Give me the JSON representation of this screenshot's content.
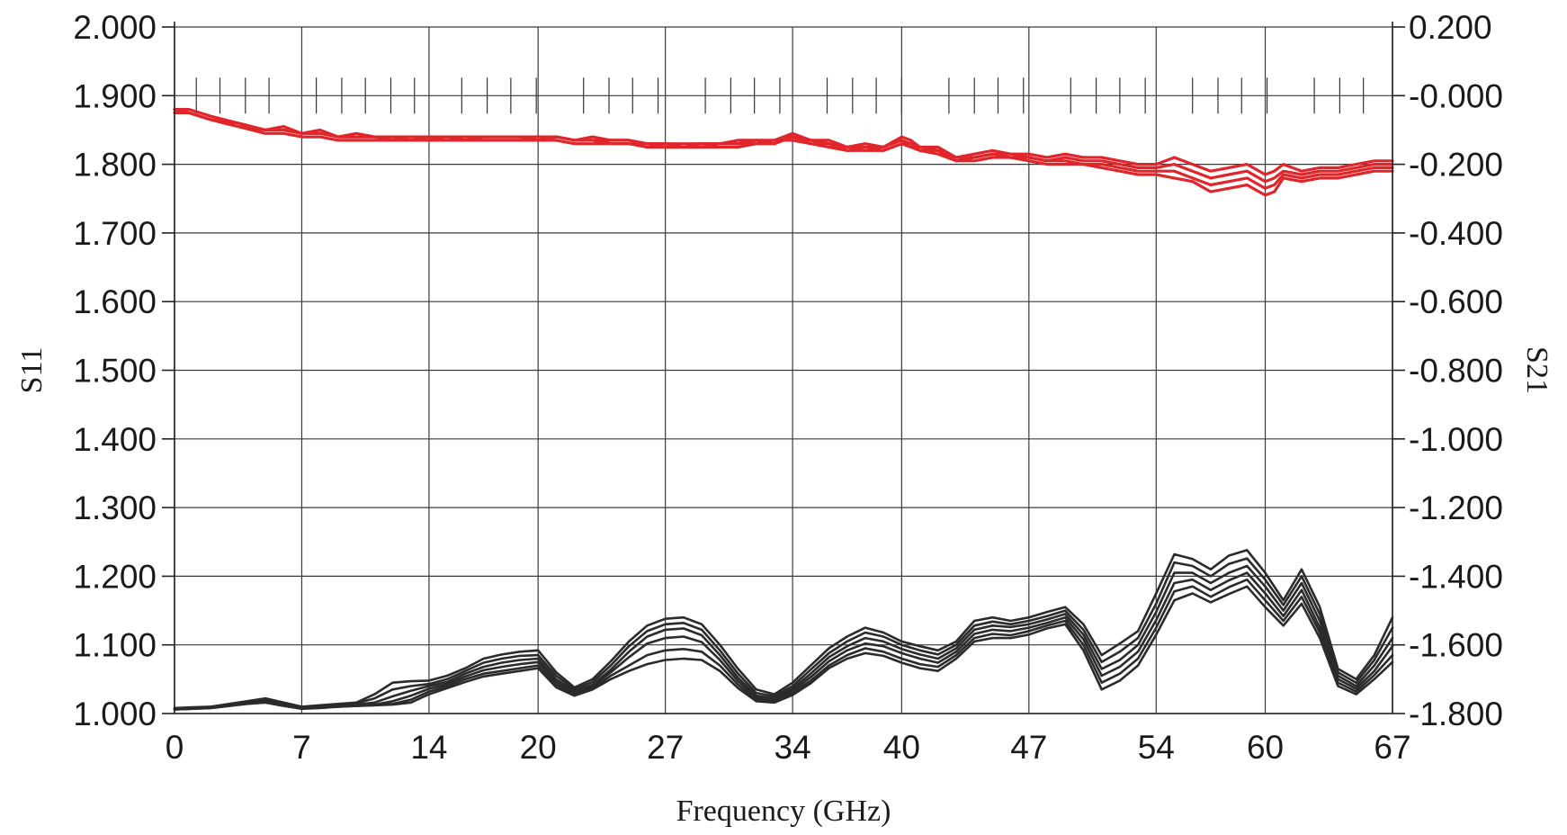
{
  "chart_data": {
    "type": "line",
    "title": "",
    "xlabel": "Frequency (GHz)",
    "ylabel_left": "S11",
    "ylabel_right": "S21",
    "x_ticks": [
      0,
      7,
      14,
      20,
      27,
      34,
      40,
      47,
      54,
      60,
      67
    ],
    "x_tick_labels": [
      "0",
      "7",
      "14",
      "20",
      "27",
      "34",
      "40",
      "47",
      "54",
      "60",
      "67"
    ],
    "xlim": [
      0,
      67
    ],
    "y_left_ticks": [
      1.0,
      1.1,
      1.2,
      1.3,
      1.4,
      1.5,
      1.6,
      1.7,
      1.8,
      1.9,
      2.0
    ],
    "y_left_tick_labels": [
      "1.000",
      "1.100",
      "1.200",
      "1.300",
      "1.400",
      "1.500",
      "1.600",
      "1.700",
      "1.800",
      "1.900",
      "2.000"
    ],
    "ylim_left": [
      1.0,
      2.0
    ],
    "y_right_ticks": [
      -1.8,
      -1.6,
      -1.4,
      -1.2,
      -1.0,
      -0.8,
      -0.6,
      -0.4,
      -0.2,
      0.0,
      0.2
    ],
    "y_right_tick_labels": [
      "-1.800",
      "-1.600",
      "-1.400",
      "-1.200",
      "-1.000",
      "-0.800",
      "-0.600",
      "-0.400",
      "-0.200",
      "-0.000",
      "0.200"
    ],
    "ylim_right": [
      -1.8,
      0.2
    ],
    "grid": true,
    "legend": "none",
    "colors": {
      "s21": "#e0262b",
      "s11": "#2b2b2b"
    },
    "marker_x": [
      1.2,
      2.5,
      3.9,
      5.2,
      7.8,
      9.2,
      10.5,
      11.9,
      13.2,
      15.8,
      17.2,
      18.5,
      19.9,
      22.5,
      23.9,
      25.2,
      26.6,
      29.2,
      30.6,
      31.9,
      33.3,
      35.9,
      37.3,
      38.6,
      40,
      42.6,
      44,
      45.3,
      46.7,
      49.3,
      50.7,
      52,
      53.4,
      56,
      57.4,
      58.7,
      60.1,
      62.7,
      64.1,
      65.4
    ],
    "s21": {
      "axis": "right",
      "x": [
        0,
        0.8,
        2,
        3.5,
        5,
        6,
        7,
        8,
        9,
        10,
        11,
        12,
        13,
        14,
        15,
        16,
        17,
        18,
        19,
        20,
        21,
        22,
        23,
        24,
        25,
        26,
        27,
        28,
        29,
        30,
        31,
        32,
        33,
        33.5,
        34,
        35,
        36,
        37,
        38,
        39,
        40,
        40.5,
        41,
        42,
        43,
        44,
        45,
        46,
        47,
        48,
        49,
        50,
        51,
        52,
        53,
        54,
        55,
        56,
        57,
        58,
        59,
        60,
        60.5,
        61,
        62,
        63,
        64,
        65,
        66,
        67
      ],
      "series": [
        {
          "values": [
            -0.04,
            -0.04,
            -0.06,
            -0.08,
            -0.1,
            -0.09,
            -0.11,
            -0.1,
            -0.12,
            -0.11,
            -0.12,
            -0.12,
            -0.12,
            -0.12,
            -0.12,
            -0.12,
            -0.12,
            -0.12,
            -0.12,
            -0.12,
            -0.12,
            -0.13,
            -0.12,
            -0.13,
            -0.13,
            -0.14,
            -0.14,
            -0.14,
            -0.14,
            -0.14,
            -0.13,
            -0.13,
            -0.13,
            -0.12,
            -0.11,
            -0.13,
            -0.13,
            -0.15,
            -0.14,
            -0.15,
            -0.12,
            -0.13,
            -0.15,
            -0.15,
            -0.18,
            -0.17,
            -0.16,
            -0.17,
            -0.17,
            -0.18,
            -0.17,
            -0.18,
            -0.18,
            -0.19,
            -0.2,
            -0.2,
            -0.18,
            -0.2,
            -0.22,
            -0.21,
            -0.2,
            -0.23,
            -0.22,
            -0.2,
            -0.22,
            -0.21,
            -0.21,
            -0.2,
            -0.19,
            -0.19
          ]
        },
        {
          "values": [
            -0.04,
            -0.05,
            -0.07,
            -0.08,
            -0.1,
            -0.1,
            -0.11,
            -0.11,
            -0.12,
            -0.12,
            -0.12,
            -0.12,
            -0.13,
            -0.12,
            -0.12,
            -0.13,
            -0.12,
            -0.12,
            -0.12,
            -0.13,
            -0.12,
            -0.13,
            -0.13,
            -0.13,
            -0.13,
            -0.14,
            -0.14,
            -0.15,
            -0.14,
            -0.14,
            -0.14,
            -0.13,
            -0.14,
            -0.12,
            -0.12,
            -0.13,
            -0.14,
            -0.15,
            -0.15,
            -0.15,
            -0.13,
            -0.14,
            -0.15,
            -0.16,
            -0.18,
            -0.18,
            -0.17,
            -0.17,
            -0.18,
            -0.19,
            -0.18,
            -0.19,
            -0.19,
            -0.2,
            -0.21,
            -0.21,
            -0.2,
            -0.22,
            -0.24,
            -0.23,
            -0.22,
            -0.25,
            -0.24,
            -0.22,
            -0.23,
            -0.22,
            -0.22,
            -0.21,
            -0.2,
            -0.2
          ]
        },
        {
          "values": [
            -0.04,
            -0.05,
            -0.07,
            -0.09,
            -0.1,
            -0.1,
            -0.11,
            -0.11,
            -0.12,
            -0.12,
            -0.12,
            -0.13,
            -0.13,
            -0.13,
            -0.12,
            -0.13,
            -0.13,
            -0.13,
            -0.13,
            -0.13,
            -0.12,
            -0.13,
            -0.13,
            -0.14,
            -0.14,
            -0.14,
            -0.15,
            -0.15,
            -0.15,
            -0.14,
            -0.14,
            -0.14,
            -0.14,
            -0.13,
            -0.12,
            -0.14,
            -0.14,
            -0.16,
            -0.15,
            -0.16,
            -0.14,
            -0.14,
            -0.16,
            -0.16,
            -0.19,
            -0.18,
            -0.17,
            -0.18,
            -0.18,
            -0.19,
            -0.19,
            -0.2,
            -0.2,
            -0.21,
            -0.22,
            -0.22,
            -0.22,
            -0.24,
            -0.26,
            -0.25,
            -0.24,
            -0.27,
            -0.26,
            -0.23,
            -0.24,
            -0.23,
            -0.23,
            -0.22,
            -0.21,
            -0.21
          ]
        },
        {
          "values": [
            -0.05,
            -0.05,
            -0.07,
            -0.09,
            -0.11,
            -0.11,
            -0.12,
            -0.12,
            -0.13,
            -0.13,
            -0.13,
            -0.13,
            -0.13,
            -0.13,
            -0.13,
            -0.13,
            -0.13,
            -0.13,
            -0.13,
            -0.13,
            -0.13,
            -0.14,
            -0.14,
            -0.14,
            -0.14,
            -0.15,
            -0.15,
            -0.15,
            -0.15,
            -0.15,
            -0.15,
            -0.14,
            -0.14,
            -0.13,
            -0.13,
            -0.14,
            -0.15,
            -0.16,
            -0.16,
            -0.16,
            -0.14,
            -0.15,
            -0.16,
            -0.17,
            -0.19,
            -0.19,
            -0.18,
            -0.18,
            -0.19,
            -0.2,
            -0.2,
            -0.2,
            -0.21,
            -0.22,
            -0.23,
            -0.23,
            -0.24,
            -0.25,
            -0.28,
            -0.27,
            -0.26,
            -0.29,
            -0.28,
            -0.24,
            -0.25,
            -0.24,
            -0.24,
            -0.23,
            -0.22,
            -0.22
          ]
        }
      ]
    },
    "s11": {
      "axis": "left",
      "x": [
        0,
        1,
        2,
        3,
        4,
        5,
        6,
        7,
        8,
        9,
        10,
        11,
        12,
        13,
        14,
        15,
        16,
        17,
        18,
        19,
        20,
        21,
        22,
        23,
        24,
        25,
        26,
        27,
        28,
        29,
        30,
        31,
        32,
        33,
        34,
        35,
        36,
        37,
        38,
        39,
        40,
        41,
        42,
        43,
        44,
        45,
        46,
        47,
        48,
        49,
        50,
        51,
        52,
        53,
        54,
        55,
        56,
        57,
        58,
        59,
        60,
        61,
        62,
        63,
        64,
        65,
        66,
        67
      ],
      "series": [
        {
          "values": [
            1.008,
            1.009,
            1.01,
            1.014,
            1.018,
            1.022,
            1.016,
            1.01,
            1.012,
            1.014,
            1.016,
            1.028,
            1.045,
            1.047,
            1.048,
            1.055,
            1.066,
            1.08,
            1.086,
            1.09,
            1.092,
            1.06,
            1.038,
            1.05,
            1.076,
            1.105,
            1.128,
            1.138,
            1.14,
            1.13,
            1.1,
            1.065,
            1.035,
            1.028,
            1.045,
            1.07,
            1.095,
            1.112,
            1.125,
            1.118,
            1.105,
            1.098,
            1.092,
            1.105,
            1.135,
            1.14,
            1.135,
            1.14,
            1.148,
            1.155,
            1.13,
            1.085,
            1.102,
            1.12,
            1.175,
            1.232,
            1.225,
            1.21,
            1.23,
            1.238,
            1.205,
            1.165,
            1.21,
            1.155,
            1.065,
            1.05,
            1.085,
            1.14
          ]
        },
        {
          "values": [
            1.007,
            1.008,
            1.01,
            1.013,
            1.017,
            1.02,
            1.015,
            1.009,
            1.011,
            1.013,
            1.015,
            1.022,
            1.035,
            1.04,
            1.043,
            1.05,
            1.062,
            1.074,
            1.08,
            1.084,
            1.085,
            1.055,
            1.035,
            1.046,
            1.07,
            1.098,
            1.12,
            1.13,
            1.132,
            1.122,
            1.092,
            1.058,
            1.03,
            1.025,
            1.04,
            1.064,
            1.088,
            1.105,
            1.118,
            1.112,
            1.1,
            1.092,
            1.086,
            1.1,
            1.128,
            1.134,
            1.13,
            1.135,
            1.142,
            1.15,
            1.122,
            1.075,
            1.09,
            1.11,
            1.16,
            1.22,
            1.215,
            1.2,
            1.218,
            1.226,
            1.195,
            1.158,
            1.2,
            1.145,
            1.06,
            1.045,
            1.078,
            1.125
          ]
        },
        {
          "values": [
            1.007,
            1.008,
            1.009,
            1.012,
            1.016,
            1.019,
            1.014,
            1.008,
            1.01,
            1.012,
            1.013,
            1.016,
            1.025,
            1.033,
            1.04,
            1.046,
            1.058,
            1.068,
            1.074,
            1.078,
            1.08,
            1.05,
            1.032,
            1.042,
            1.064,
            1.09,
            1.112,
            1.122,
            1.124,
            1.114,
            1.085,
            1.052,
            1.026,
            1.022,
            1.036,
            1.058,
            1.082,
            1.098,
            1.11,
            1.105,
            1.094,
            1.086,
            1.08,
            1.095,
            1.122,
            1.128,
            1.126,
            1.13,
            1.137,
            1.145,
            1.115,
            1.065,
            1.078,
            1.1,
            1.148,
            1.205,
            1.205,
            1.19,
            1.205,
            1.215,
            1.185,
            1.15,
            1.19,
            1.135,
            1.055,
            1.04,
            1.07,
            1.11
          ]
        },
        {
          "values": [
            1.006,
            1.007,
            1.009,
            1.012,
            1.015,
            1.018,
            1.013,
            1.008,
            1.009,
            1.011,
            1.012,
            1.013,
            1.018,
            1.026,
            1.036,
            1.043,
            1.054,
            1.063,
            1.068,
            1.072,
            1.075,
            1.046,
            1.03,
            1.04,
            1.06,
            1.082,
            1.102,
            1.11,
            1.112,
            1.104,
            1.078,
            1.047,
            1.023,
            1.02,
            1.033,
            1.053,
            1.076,
            1.092,
            1.102,
            1.098,
            1.088,
            1.08,
            1.074,
            1.09,
            1.116,
            1.122,
            1.12,
            1.125,
            1.132,
            1.14,
            1.108,
            1.055,
            1.068,
            1.09,
            1.136,
            1.19,
            1.195,
            1.18,
            1.194,
            1.205,
            1.175,
            1.142,
            1.18,
            1.125,
            1.05,
            1.036,
            1.062,
            1.098
          ]
        },
        {
          "values": [
            1.006,
            1.007,
            1.008,
            1.011,
            1.015,
            1.017,
            1.012,
            1.007,
            1.009,
            1.01,
            1.011,
            1.012,
            1.014,
            1.02,
            1.032,
            1.04,
            1.05,
            1.058,
            1.062,
            1.066,
            1.07,
            1.042,
            1.028,
            1.037,
            1.055,
            1.07,
            1.085,
            1.092,
            1.094,
            1.09,
            1.07,
            1.042,
            1.02,
            1.018,
            1.03,
            1.048,
            1.07,
            1.085,
            1.095,
            1.09,
            1.08,
            1.072,
            1.068,
            1.085,
            1.11,
            1.116,
            1.114,
            1.12,
            1.128,
            1.135,
            1.1,
            1.045,
            1.058,
            1.08,
            1.125,
            1.178,
            1.185,
            1.17,
            1.184,
            1.195,
            1.165,
            1.135,
            1.17,
            1.118,
            1.045,
            1.032,
            1.056,
            1.085
          ]
        },
        {
          "values": [
            1.006,
            1.007,
            1.008,
            1.011,
            1.014,
            1.016,
            1.011,
            1.007,
            1.008,
            1.01,
            1.011,
            1.012,
            1.013,
            1.016,
            1.028,
            1.037,
            1.046,
            1.054,
            1.058,
            1.062,
            1.066,
            1.038,
            1.026,
            1.035,
            1.05,
            1.062,
            1.072,
            1.078,
            1.08,
            1.078,
            1.062,
            1.037,
            1.018,
            1.016,
            1.027,
            1.044,
            1.066,
            1.08,
            1.088,
            1.084,
            1.074,
            1.066,
            1.062,
            1.08,
            1.105,
            1.11,
            1.11,
            1.115,
            1.124,
            1.13,
            1.092,
            1.035,
            1.048,
            1.07,
            1.115,
            1.165,
            1.175,
            1.162,
            1.174,
            1.185,
            1.155,
            1.128,
            1.16,
            1.11,
            1.04,
            1.028,
            1.05,
            1.075
          ]
        }
      ]
    }
  }
}
